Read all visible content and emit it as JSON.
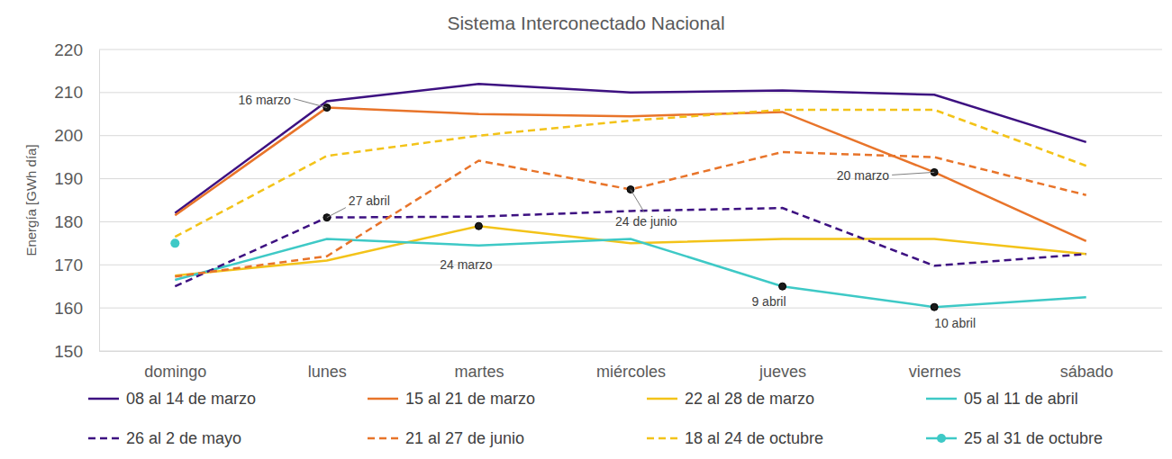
{
  "chart_data": {
    "type": "line",
    "title": "Sistema Interconectado Nacional",
    "ylabel": "Energía [GWh día]",
    "categories": [
      "domingo",
      "lunes",
      "martes",
      "miércoles",
      "jueves",
      "viernes",
      "sábado"
    ],
    "ylim": [
      150,
      220
    ],
    "yticks": [
      150,
      160,
      170,
      180,
      190,
      200,
      210,
      220
    ],
    "grid": true,
    "legend": "bottom",
    "series": [
      {
        "name": "08 al 14 de marzo",
        "color": "#3d1181",
        "line_style": "solid",
        "values": [
          182,
          208,
          212,
          210,
          210.5,
          209.5,
          198.5
        ]
      },
      {
        "name": "15 al 21 de marzo",
        "color": "#e8742a",
        "line_style": "solid",
        "values": [
          181.5,
          206.5,
          205,
          204.5,
          205.5,
          191.5,
          175.5
        ]
      },
      {
        "name": "22 al 28 de marzo",
        "color": "#f3c319",
        "line_style": "solid",
        "values": [
          167.5,
          171,
          179,
          175,
          176,
          176,
          172.5
        ]
      },
      {
        "name": "05 al 11 de abril",
        "color": "#3ec9c6",
        "line_style": "solid",
        "values": [
          166.5,
          176,
          174.5,
          176,
          165,
          160.2,
          162.5
        ]
      },
      {
        "name": "26 al 2 de mayo",
        "color": "#3d1181",
        "line_style": "dashed",
        "values": [
          165,
          181,
          181.2,
          182.5,
          183.2,
          169.8,
          172.5
        ]
      },
      {
        "name": "21 al 27 de junio",
        "color": "#e8742a",
        "line_style": "dashed",
        "values": [
          167.3,
          172,
          194.2,
          187.5,
          196.2,
          195,
          186.2
        ]
      },
      {
        "name": "18 al 24 de octubre",
        "color": "#f3c319",
        "line_style": "dashed",
        "values": [
          176.5,
          195.3,
          200,
          203.5,
          206,
          206,
          193
        ]
      },
      {
        "name": "25 al 31 de octubre",
        "color": "#3ec9c6",
        "line_style": "solid",
        "marker": "circle",
        "values": [
          175,
          null,
          null,
          null,
          null,
          null,
          null
        ]
      }
    ],
    "annotations": [
      {
        "text": "16 marzo",
        "series": "15 al 21 de marzo",
        "x": "lunes"
      },
      {
        "text": "27 abril",
        "series": "26 al 2 de mayo",
        "x": "lunes"
      },
      {
        "text": "24 marzo",
        "series": "22 al 28 de marzo",
        "x": "martes"
      },
      {
        "text": "24 de junio",
        "series": "21 al 27 de junio",
        "x": "miércoles"
      },
      {
        "text": "9 abril",
        "series": "05 al 11 de abril",
        "x": "jueves"
      },
      {
        "text": "20 marzo",
        "series": "15 al 21 de marzo",
        "x": "viernes"
      },
      {
        "text": "10 abril",
        "series": "05 al 11 de abril",
        "x": "viernes"
      }
    ]
  }
}
